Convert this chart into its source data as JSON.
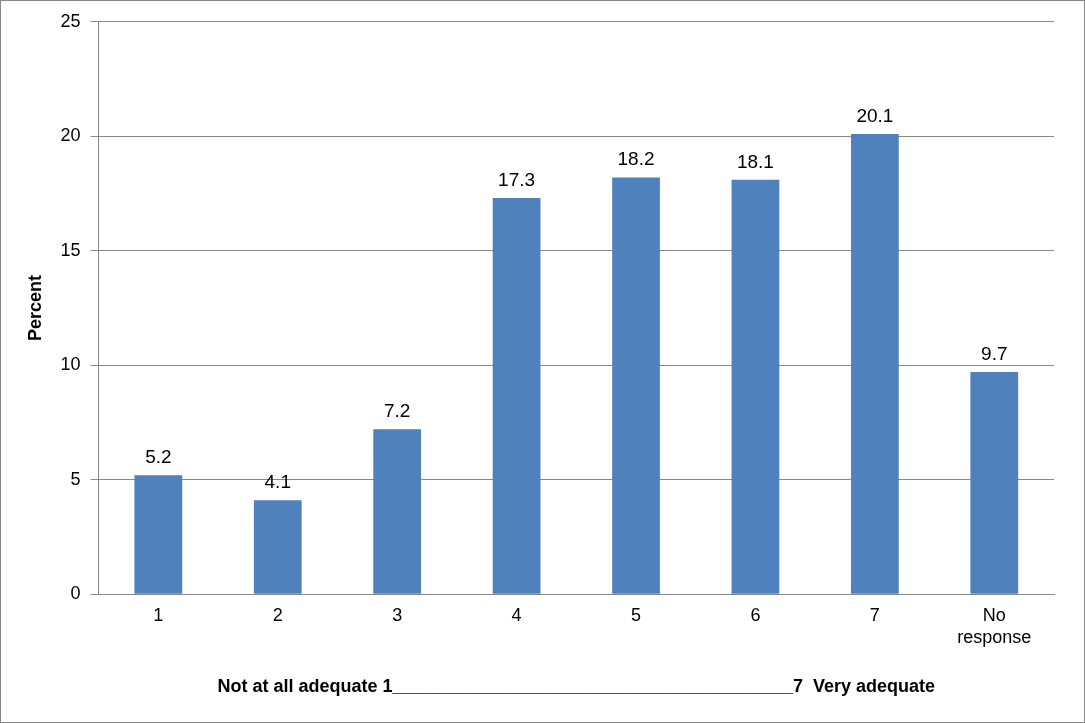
{
  "chart_data": {
    "type": "bar",
    "xlabel": "Not at all adequate 1________________________________________7  Very adequate",
    "ylabel": "Percent",
    "categories": [
      "1",
      "2",
      "3",
      "4",
      "5",
      "6",
      "7",
      "No response"
    ],
    "values": [
      5.2,
      4.1,
      7.2,
      17.3,
      18.2,
      18.1,
      20.1,
      9.7
    ],
    "color": "#4f81bd",
    "ylim": [
      0,
      25
    ],
    "yticks": [
      0,
      5,
      10,
      15,
      20,
      25
    ],
    "grid": "y",
    "data_labels": true,
    "legend": false
  }
}
